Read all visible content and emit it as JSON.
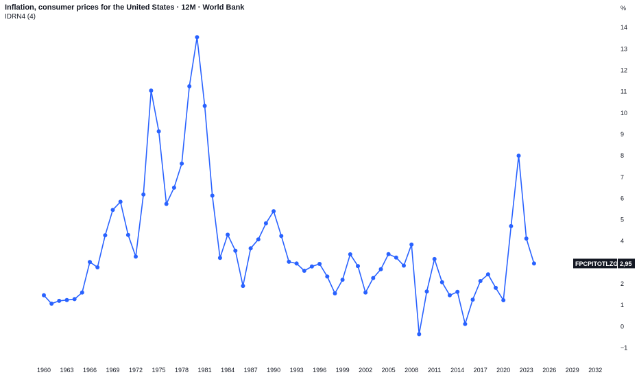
{
  "title": "Inflation, consumer prices for the United States · 12M · World Bank",
  "indicator": "IDRN4 (4)",
  "unit": "%",
  "badge": {
    "symbol": "FPCPITOTLZGUSA",
    "value": "2,95"
  },
  "colors": {
    "line": "#2962ff",
    "badge_bg": "#131722",
    "text": "#131722"
  },
  "chart_data": {
    "type": "line",
    "title": "Inflation, consumer prices for the United States · 12M · World Bank",
    "xlabel": "",
    "ylabel": "%",
    "ylim": [
      -1,
      14
    ],
    "xlim": [
      1960,
      2032
    ],
    "y_ticks": [
      "−1",
      "0",
      "1",
      "2",
      "3",
      "4",
      "5",
      "6",
      "7",
      "8",
      "9",
      "10",
      "11",
      "12",
      "13",
      "14"
    ],
    "x_ticks": [
      "1960",
      "1963",
      "1966",
      "1969",
      "1972",
      "1975",
      "1978",
      "1981",
      "1984",
      "1987",
      "1990",
      "1993",
      "1996",
      "1999",
      "2002",
      "2005",
      "2008",
      "2011",
      "2014",
      "2017",
      "2020",
      "2023",
      "2026",
      "2029",
      "2032"
    ],
    "grid": false,
    "legend": "none",
    "series": [
      {
        "name": "FPCPITOTLZGUSA",
        "x": [
          1960,
          1961,
          1962,
          1963,
          1964,
          1965,
          1966,
          1967,
          1968,
          1969,
          1970,
          1971,
          1972,
          1973,
          1974,
          1975,
          1976,
          1977,
          1978,
          1979,
          1980,
          1981,
          1982,
          1983,
          1984,
          1985,
          1986,
          1987,
          1988,
          1989,
          1990,
          1991,
          1992,
          1993,
          1994,
          1995,
          1996,
          1997,
          1998,
          1999,
          2000,
          2001,
          2002,
          2003,
          2004,
          2005,
          2006,
          2007,
          2008,
          2009,
          2010,
          2011,
          2012,
          2013,
          2014,
          2015,
          2016,
          2017,
          2018,
          2019,
          2020,
          2021,
          2022,
          2023,
          2024
        ],
        "values": [
          1.46,
          1.07,
          1.2,
          1.24,
          1.28,
          1.59,
          3.02,
          2.77,
          4.27,
          5.46,
          5.84,
          4.29,
          3.27,
          6.18,
          11.05,
          9.14,
          5.74,
          6.5,
          7.63,
          11.25,
          13.55,
          10.33,
          6.13,
          3.21,
          4.3,
          3.55,
          1.9,
          3.66,
          4.08,
          4.83,
          5.4,
          4.24,
          3.03,
          2.95,
          2.61,
          2.81,
          2.93,
          2.34,
          1.55,
          2.19,
          3.38,
          2.83,
          1.59,
          2.27,
          2.68,
          3.39,
          3.23,
          2.85,
          3.84,
          -0.36,
          1.64,
          3.16,
          2.07,
          1.46,
          1.62,
          0.12,
          1.26,
          2.13,
          2.44,
          1.81,
          1.23,
          4.7,
          8.0,
          4.12,
          2.95
        ]
      }
    ]
  }
}
